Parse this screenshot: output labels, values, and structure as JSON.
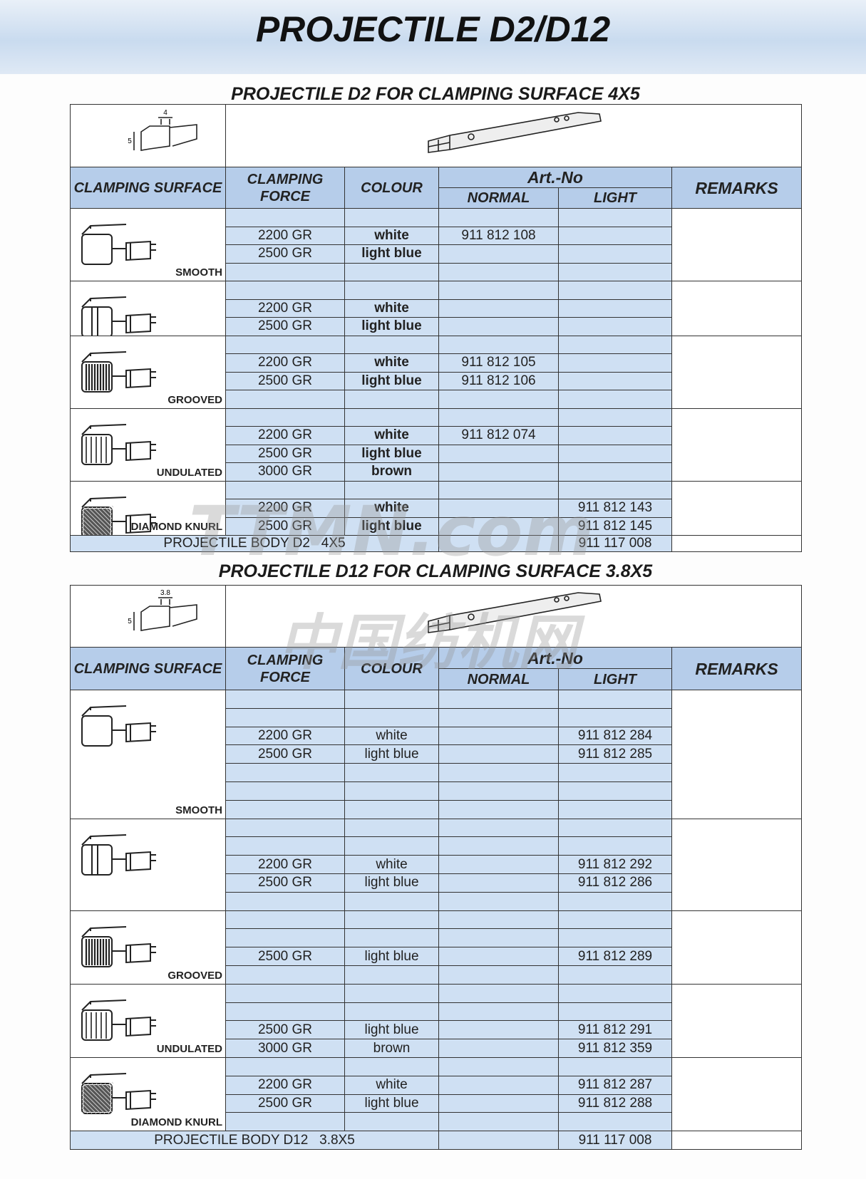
{
  "header": {
    "title": "PROJECTILE D2/D12"
  },
  "sections": [
    {
      "title": "PROJECTILE D2 FOR CLAMPING SURFACE 4X5",
      "dimension_labels": [
        "4",
        "5"
      ],
      "headers": {
        "surface": "CLAMPING SURFACE",
        "force": "CLAMPING FORCE",
        "colour": "COLOUR",
        "artno": "Art.-No",
        "normal": "NORMAL",
        "light": "LIGHT",
        "remarks": "REMARKS"
      },
      "groups": [
        {
          "label": "SMOOTH",
          "rows": [
            [
              null,
              null,
              null,
              null
            ],
            [
              "2200 GR",
              "white",
              "911 812 108",
              null
            ],
            [
              "2500 GR",
              "light blue",
              null,
              null
            ],
            [
              null,
              null,
              null,
              null
            ]
          ]
        },
        {
          "label": null,
          "rows": [
            [
              null,
              null,
              null,
              null
            ],
            [
              "2200 GR",
              "white",
              null,
              null
            ],
            [
              "2500 GR",
              "light blue",
              null,
              null
            ]
          ]
        },
        {
          "label": "GROOVED",
          "rows": [
            [
              null,
              null,
              null,
              null
            ],
            [
              "2200 GR",
              "white",
              "911 812 105",
              null
            ],
            [
              "2500 GR",
              "light blue",
              "911 812 106",
              null
            ],
            [
              null,
              null,
              null,
              null
            ]
          ]
        },
        {
          "label": "UNDULATED",
          "rows": [
            [
              null,
              null,
              null,
              null
            ],
            [
              "2200 GR",
              "white",
              "911 812 074",
              null
            ],
            [
              "2500 GR",
              "light blue",
              null,
              null
            ],
            [
              "3000 GR",
              "brown",
              null,
              null
            ]
          ]
        },
        {
          "label": "DIAMOND KNURL",
          "rows": [
            [
              null,
              null,
              null,
              null
            ],
            [
              "2200 GR",
              "white",
              null,
              "911 812 143"
            ],
            [
              "2500 GR",
              "light blue",
              null,
              "911 812 145"
            ]
          ]
        }
      ],
      "body": {
        "label": "PROJECTILE BODY D2   4X5",
        "light": "911 117 008"
      }
    },
    {
      "title": "PROJECTILE D12 FOR CLAMPING SURFACE 3.8X5",
      "dimension_labels": [
        "3.8",
        "5"
      ],
      "headers": {
        "surface": "CLAMPING SURFACE",
        "force": "CLAMPING FORCE",
        "colour": "COLOUR",
        "artno": "Art.-No",
        "normal": "NORMAL",
        "light": "LIGHT",
        "remarks": "REMARKS"
      },
      "groups": [
        {
          "label": "SMOOTH",
          "rows": [
            [
              null,
              null,
              null,
              null
            ],
            [
              null,
              null,
              null,
              null
            ],
            [
              "2200 GR",
              "white",
              null,
              "911 812 284"
            ],
            [
              "2500 GR",
              "light blue",
              null,
              "911 812 285"
            ],
            [
              null,
              null,
              null,
              null
            ],
            [
              null,
              null,
              null,
              null
            ],
            [
              null,
              null,
              null,
              null
            ]
          ]
        },
        {
          "label": null,
          "rows": [
            [
              null,
              null,
              null,
              null
            ],
            [
              null,
              null,
              null,
              null
            ],
            [
              "2200 GR",
              "white",
              null,
              "911 812 292"
            ],
            [
              "2500 GR",
              "light blue",
              null,
              "911 812 286"
            ],
            [
              null,
              null,
              null,
              null
            ]
          ]
        },
        {
          "label": "GROOVED",
          "rows": [
            [
              null,
              null,
              null,
              null
            ],
            [
              null,
              null,
              null,
              null
            ],
            [
              "2500 GR",
              "light blue",
              null,
              "911 812 289"
            ],
            [
              null,
              null,
              null,
              null
            ]
          ]
        },
        {
          "label": "UNDULATED",
          "rows": [
            [
              null,
              null,
              null,
              null
            ],
            [
              null,
              null,
              null,
              null
            ],
            [
              "2500 GR",
              "light blue",
              null,
              "911 812 291"
            ],
            [
              "3000 GR",
              "brown",
              null,
              "911 812 359"
            ]
          ]
        },
        {
          "label": "DIAMOND KNURL",
          "rows": [
            [
              null,
              null,
              null,
              null
            ],
            [
              "2200 GR",
              "white",
              null,
              "911 812 287"
            ],
            [
              "2500 GR",
              "light blue",
              null,
              "911 812 288"
            ],
            [
              null,
              null,
              null,
              null
            ]
          ]
        }
      ],
      "body": {
        "label": "PROJECTILE BODY D12   3.8X5",
        "light": "911 117 008"
      }
    }
  ],
  "watermark": [
    "TTMN.com",
    "中国纺机网"
  ]
}
